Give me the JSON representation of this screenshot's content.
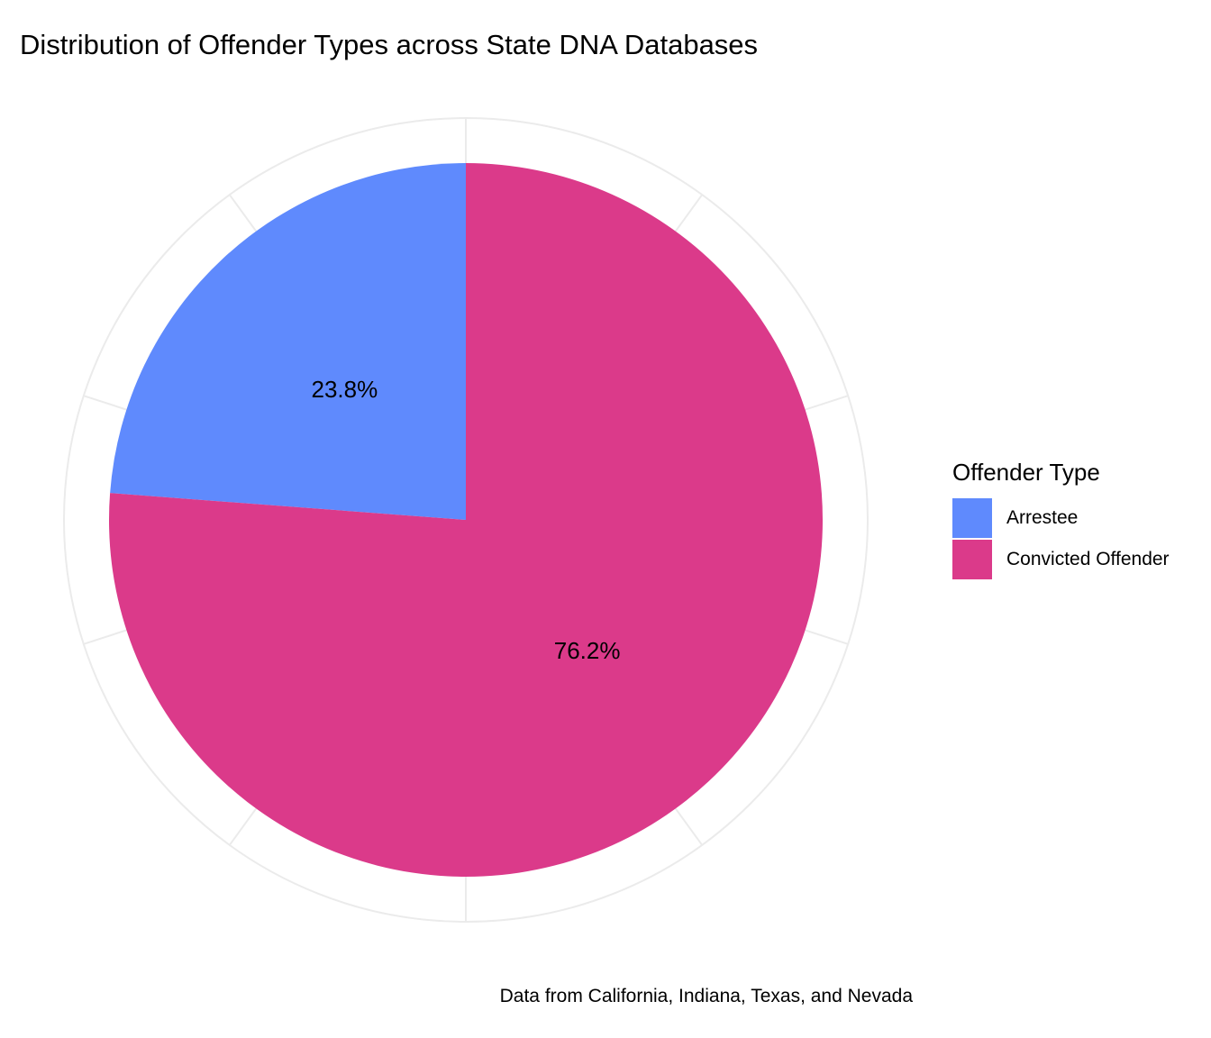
{
  "chart_data": {
    "type": "pie",
    "title": "Distribution of Offender Types across State DNA Databases",
    "caption": "Data from California, Indiana, Texas, and Nevada",
    "legend_title": "Offender Type",
    "legend_position": "right",
    "grid": true,
    "slices": [
      {
        "label": "Arrestee",
        "value": 23.8,
        "display": "23.8%",
        "color": "#5F8AFD"
      },
      {
        "label": "Convicted Offender",
        "value": 76.2,
        "display": "76.2%",
        "color": "#DB3A8A"
      }
    ]
  },
  "colors": {
    "background": "#FFFFFF",
    "grid": "#EBEBEB",
    "text": "#000000"
  }
}
